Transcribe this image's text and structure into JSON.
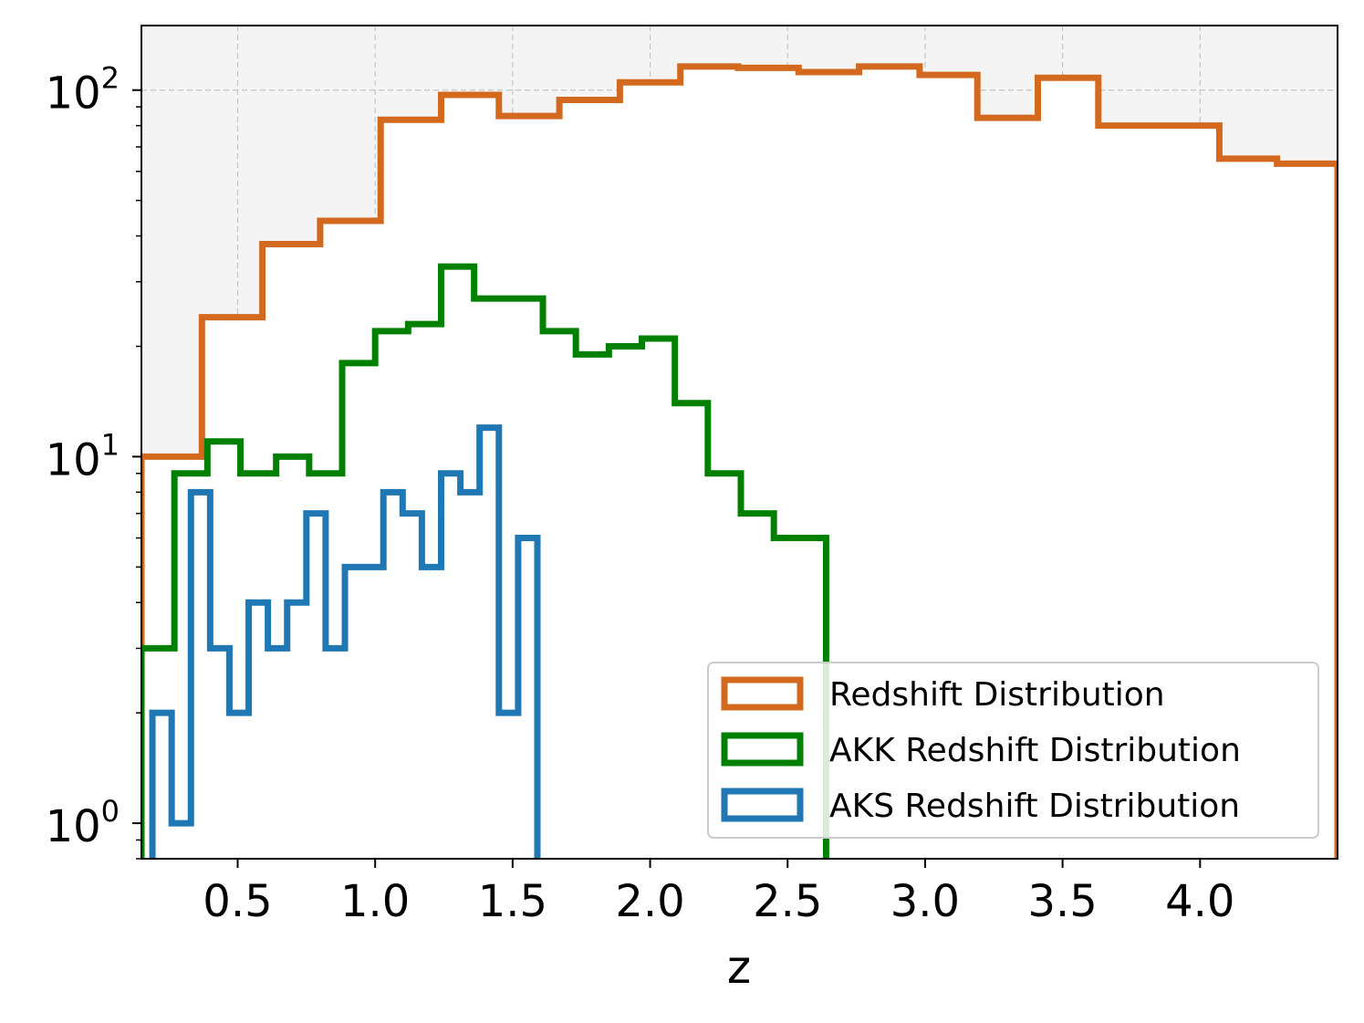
{
  "chart_data": {
    "type": "histogram-step",
    "title": "",
    "xlabel": "z",
    "ylabel": "",
    "yscale": "log",
    "xlim": [
      0.15,
      4.5
    ],
    "ylim": [
      0.8,
      150
    ],
    "grid": true,
    "legend_position": "lower-right",
    "x_ticks": [
      "0.5",
      "1.0",
      "1.5",
      "2.0",
      "2.5",
      "3.0",
      "3.5",
      "4.0"
    ],
    "y_ticks": [
      {
        "value": 1,
        "base": "10",
        "exp": "0"
      },
      {
        "value": 10,
        "base": "10",
        "exp": "1"
      },
      {
        "value": 100,
        "base": "10",
        "exp": "2"
      }
    ],
    "series": [
      {
        "name": "Redshift Distribution",
        "color": "#d2691e",
        "edges": [
          0.15,
          0.37,
          0.59,
          0.8,
          1.02,
          1.24,
          1.45,
          1.67,
          1.89,
          2.11,
          2.32,
          2.54,
          2.76,
          2.98,
          3.19,
          3.41,
          3.63,
          3.85,
          4.07,
          4.28,
          4.5
        ],
        "counts": [
          10,
          24,
          38,
          44,
          83,
          97,
          85,
          94,
          105,
          116,
          115,
          112,
          116,
          110,
          84,
          108,
          80,
          80,
          65,
          63
        ]
      },
      {
        "name": "AKK Redshift Distribution",
        "color": "#008000",
        "edges": [
          0.15,
          0.27,
          0.39,
          0.51,
          0.64,
          0.76,
          0.88,
          1.0,
          1.12,
          1.24,
          1.36,
          1.48,
          1.61,
          1.73,
          1.85,
          1.97,
          2.09,
          2.21,
          2.33,
          2.45,
          2.58,
          2.64
        ],
        "counts": [
          3,
          9,
          11,
          9,
          10,
          9,
          18,
          22,
          23,
          33,
          27,
          27,
          22,
          19,
          20,
          21,
          14,
          9,
          7,
          6,
          6
        ]
      },
      {
        "name": "AKS Redshift Distribution",
        "color": "#1f77b4",
        "edges": [
          0.19,
          0.26,
          0.33,
          0.4,
          0.47,
          0.54,
          0.61,
          0.68,
          0.75,
          0.82,
          0.89,
          0.96,
          1.03,
          1.1,
          1.17,
          1.24,
          1.31,
          1.38,
          1.45,
          1.52,
          1.59
        ],
        "counts": [
          2,
          1,
          8,
          3,
          2,
          4,
          3,
          4,
          7,
          3,
          5,
          5,
          8,
          7,
          5,
          9,
          8,
          12,
          2,
          6
        ]
      }
    ]
  }
}
